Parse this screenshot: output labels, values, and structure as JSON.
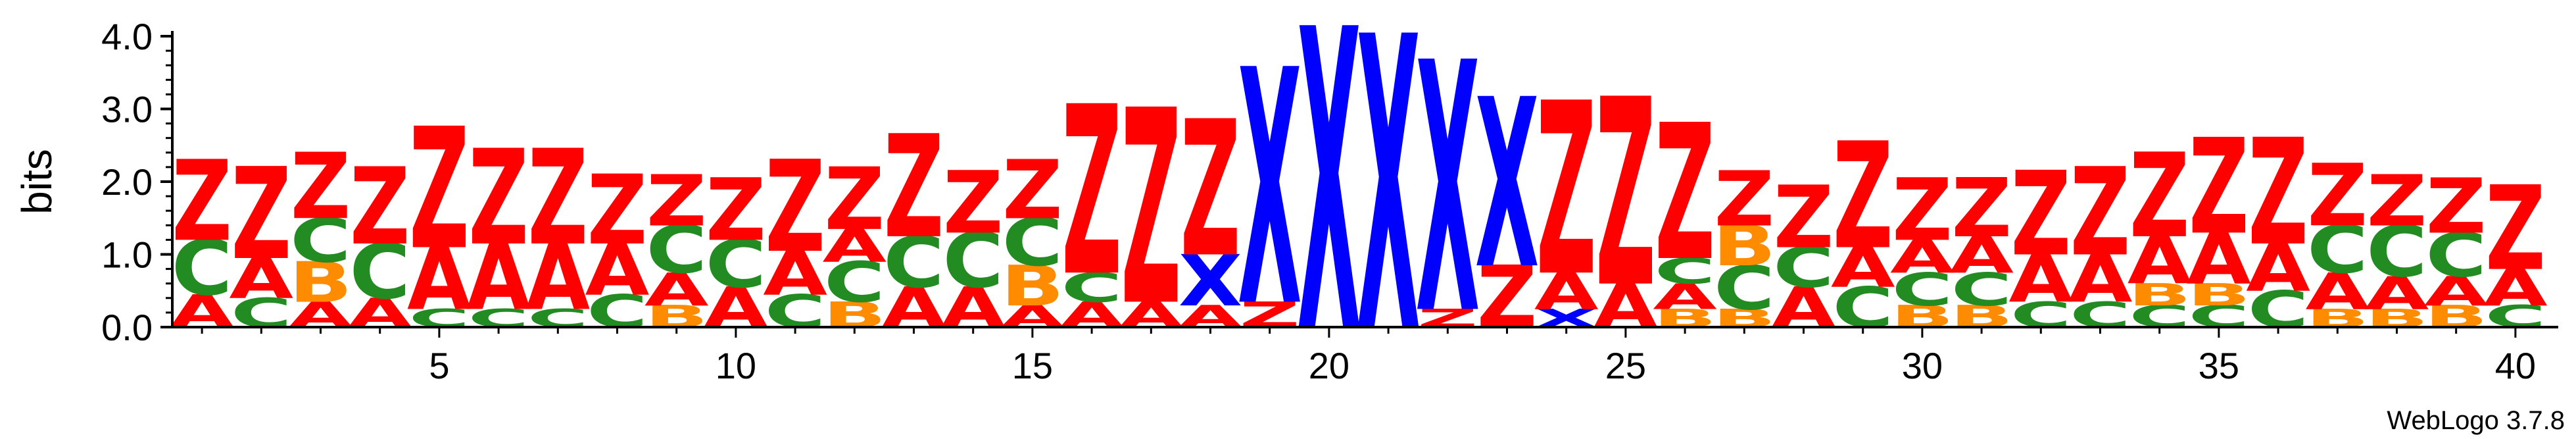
{
  "chart_data": {
    "type": "sequence-logo",
    "ylabel": "bits",
    "ylim": [
      0,
      4.0
    ],
    "yticks": [
      "0.0",
      "1.0",
      "2.0",
      "3.0",
      "4.0"
    ],
    "xticks": [
      5,
      10,
      15,
      20,
      25,
      30,
      35,
      40
    ],
    "positions": 40,
    "footer": "WebLogo 3.7.8",
    "colors": {
      "Z": "#ff0000",
      "A": "#ff0000",
      "X": "#0000ff",
      "C": "#228b22",
      "B": "#ff8c00"
    },
    "columns": [
      {
        "pos": 1,
        "stack": [
          {
            "letter": "A",
            "bits": 0.45
          },
          {
            "letter": "C",
            "bits": 0.75
          },
          {
            "letter": "Z",
            "bits": 1.1
          }
        ]
      },
      {
        "pos": 2,
        "stack": [
          {
            "letter": "C",
            "bits": 0.4
          },
          {
            "letter": "A",
            "bits": 0.55
          },
          {
            "letter": "Z",
            "bits": 1.25
          }
        ]
      },
      {
        "pos": 3,
        "stack": [
          {
            "letter": "A",
            "bits": 0.35
          },
          {
            "letter": "B",
            "bits": 0.55
          },
          {
            "letter": "C",
            "bits": 0.6
          },
          {
            "letter": "Z",
            "bits": 0.9
          }
        ]
      },
      {
        "pos": 4,
        "stack": [
          {
            "letter": "A",
            "bits": 0.4
          },
          {
            "letter": "C",
            "bits": 0.75
          },
          {
            "letter": "Z",
            "bits": 1.05
          }
        ]
      },
      {
        "pos": 5,
        "stack": [
          {
            "letter": "C",
            "bits": 0.25
          },
          {
            "letter": "A",
            "bits": 0.85
          },
          {
            "letter": "Z",
            "bits": 1.65
          }
        ]
      },
      {
        "pos": 6,
        "stack": [
          {
            "letter": "C",
            "bits": 0.25
          },
          {
            "letter": "A",
            "bits": 0.9
          },
          {
            "letter": "Z",
            "bits": 1.3
          }
        ]
      },
      {
        "pos": 7,
        "stack": [
          {
            "letter": "C",
            "bits": 0.25
          },
          {
            "letter": "A",
            "bits": 0.9
          },
          {
            "letter": "Z",
            "bits": 1.3
          }
        ]
      },
      {
        "pos": 8,
        "stack": [
          {
            "letter": "C",
            "bits": 0.45
          },
          {
            "letter": "A",
            "bits": 0.7
          },
          {
            "letter": "Z",
            "bits": 0.95
          }
        ]
      },
      {
        "pos": 9,
        "stack": [
          {
            "letter": "B",
            "bits": 0.3
          },
          {
            "letter": "A",
            "bits": 0.45
          },
          {
            "letter": "C",
            "bits": 0.65
          },
          {
            "letter": "Z",
            "bits": 0.7
          }
        ]
      },
      {
        "pos": 10,
        "stack": [
          {
            "letter": "A",
            "bits": 0.55
          },
          {
            "letter": "C",
            "bits": 0.65
          },
          {
            "letter": "Z",
            "bits": 0.85
          }
        ]
      },
      {
        "pos": 11,
        "stack": [
          {
            "letter": "C",
            "bits": 0.45
          },
          {
            "letter": "A",
            "bits": 0.6
          },
          {
            "letter": "Z",
            "bits": 1.25
          }
        ]
      },
      {
        "pos": 12,
        "stack": [
          {
            "letter": "B",
            "bits": 0.35
          },
          {
            "letter": "C",
            "bits": 0.55
          },
          {
            "letter": "A",
            "bits": 0.45
          },
          {
            "letter": "Z",
            "bits": 0.85
          }
        ]
      },
      {
        "pos": 13,
        "stack": [
          {
            "letter": "A",
            "bits": 0.55
          },
          {
            "letter": "C",
            "bits": 0.7
          },
          {
            "letter": "Z",
            "bits": 1.4
          }
        ]
      },
      {
        "pos": 14,
        "stack": [
          {
            "letter": "A",
            "bits": 0.55
          },
          {
            "letter": "C",
            "bits": 0.75
          },
          {
            "letter": "Z",
            "bits": 0.85
          }
        ]
      },
      {
        "pos": 15,
        "stack": [
          {
            "letter": "A",
            "bits": 0.3
          },
          {
            "letter": "B",
            "bits": 0.55
          },
          {
            "letter": "C",
            "bits": 0.65
          },
          {
            "letter": "Z",
            "bits": 0.8
          }
        ]
      },
      {
        "pos": 16,
        "stack": [
          {
            "letter": "A",
            "bits": 0.35
          },
          {
            "letter": "C",
            "bits": 0.4
          },
          {
            "letter": "Z",
            "bits": 2.3
          }
        ]
      },
      {
        "pos": 17,
        "stack": [
          {
            "letter": "A",
            "bits": 0.35
          },
          {
            "letter": "Z",
            "bits": 2.65
          }
        ]
      },
      {
        "pos": 18,
        "stack": [
          {
            "letter": "A",
            "bits": 0.3
          },
          {
            "letter": "X",
            "bits": 0.7
          },
          {
            "letter": "Z",
            "bits": 1.85
          }
        ]
      },
      {
        "pos": 19,
        "stack": [
          {
            "letter": "Z",
            "bits": 0.35
          },
          {
            "letter": "X",
            "bits": 3.2
          }
        ]
      },
      {
        "pos": 20,
        "stack": [
          {
            "letter": "X",
            "bits": 4.1
          }
        ]
      },
      {
        "pos": 21,
        "stack": [
          {
            "letter": "X",
            "bits": 4.0
          }
        ]
      },
      {
        "pos": 22,
        "stack": [
          {
            "letter": "Z",
            "bits": 0.25
          },
          {
            "letter": "X",
            "bits": 3.4
          }
        ]
      },
      {
        "pos": 23,
        "stack": [
          {
            "letter": "Z",
            "bits": 0.85
          },
          {
            "letter": "X",
            "bits": 2.3
          }
        ]
      },
      {
        "pos": 24,
        "stack": [
          {
            "letter": "X",
            "bits": 0.25
          },
          {
            "letter": "A",
            "bits": 0.5
          },
          {
            "letter": "Z",
            "bits": 2.35
          }
        ]
      },
      {
        "pos": 25,
        "stack": [
          {
            "letter": "A",
            "bits": 0.6
          },
          {
            "letter": "Z",
            "bits": 2.55
          }
        ]
      },
      {
        "pos": 26,
        "stack": [
          {
            "letter": "B",
            "bits": 0.25
          },
          {
            "letter": "A",
            "bits": 0.35
          },
          {
            "letter": "C",
            "bits": 0.35
          },
          {
            "letter": "Z",
            "bits": 1.85
          }
        ]
      },
      {
        "pos": 27,
        "stack": [
          {
            "letter": "B",
            "bits": 0.25
          },
          {
            "letter": "C",
            "bits": 0.6
          },
          {
            "letter": "B",
            "bits": 0.55
          },
          {
            "letter": "Z",
            "bits": 0.75
          }
        ]
      },
      {
        "pos": 28,
        "stack": [
          {
            "letter": "A",
            "bits": 0.55
          },
          {
            "letter": "C",
            "bits": 0.55
          },
          {
            "letter": "Z",
            "bits": 0.85
          }
        ]
      },
      {
        "pos": 29,
        "stack": [
          {
            "letter": "C",
            "bits": 0.55
          },
          {
            "letter": "A",
            "bits": 0.55
          },
          {
            "letter": "Z",
            "bits": 1.45
          }
        ]
      },
      {
        "pos": 30,
        "stack": [
          {
            "letter": "B",
            "bits": 0.3
          },
          {
            "letter": "C",
            "bits": 0.45
          },
          {
            "letter": "A",
            "bits": 0.45
          },
          {
            "letter": "Z",
            "bits": 0.85
          }
        ]
      },
      {
        "pos": 31,
        "stack": [
          {
            "letter": "B",
            "bits": 0.3
          },
          {
            "letter": "C",
            "bits": 0.45
          },
          {
            "letter": "A",
            "bits": 0.5
          },
          {
            "letter": "Z",
            "bits": 0.8
          }
        ]
      },
      {
        "pos": 32,
        "stack": [
          {
            "letter": "C",
            "bits": 0.35
          },
          {
            "letter": "A",
            "bits": 0.65
          },
          {
            "letter": "Z",
            "bits": 1.15
          }
        ]
      },
      {
        "pos": 33,
        "stack": [
          {
            "letter": "C",
            "bits": 0.35
          },
          {
            "letter": "A",
            "bits": 0.65
          },
          {
            "letter": "Z",
            "bits": 1.2
          }
        ]
      },
      {
        "pos": 34,
        "stack": [
          {
            "letter": "C",
            "bits": 0.3
          },
          {
            "letter": "B",
            "bits": 0.3
          },
          {
            "letter": "A",
            "bits": 0.65
          },
          {
            "letter": "Z",
            "bits": 1.15
          }
        ]
      },
      {
        "pos": 35,
        "stack": [
          {
            "letter": "C",
            "bits": 0.3
          },
          {
            "letter": "B",
            "bits": 0.3
          },
          {
            "letter": "A",
            "bits": 0.7
          },
          {
            "letter": "Z",
            "bits": 1.3
          }
        ]
      },
      {
        "pos": 36,
        "stack": [
          {
            "letter": "C",
            "bits": 0.5
          },
          {
            "letter": "A",
            "bits": 0.65
          },
          {
            "letter": "Z",
            "bits": 1.45
          }
        ]
      },
      {
        "pos": 37,
        "stack": [
          {
            "letter": "B",
            "bits": 0.25
          },
          {
            "letter": "A",
            "bits": 0.5
          },
          {
            "letter": "C",
            "bits": 0.65
          },
          {
            "letter": "Z",
            "bits": 0.85
          }
        ]
      },
      {
        "pos": 38,
        "stack": [
          {
            "letter": "B",
            "bits": 0.25
          },
          {
            "letter": "A",
            "bits": 0.45
          },
          {
            "letter": "C",
            "bits": 0.7
          },
          {
            "letter": "Z",
            "bits": 0.7
          }
        ]
      },
      {
        "pos": 39,
        "stack": [
          {
            "letter": "B",
            "bits": 0.3
          },
          {
            "letter": "A",
            "bits": 0.4
          },
          {
            "letter": "C",
            "bits": 0.6
          },
          {
            "letter": "Z",
            "bits": 0.75
          }
        ]
      },
      {
        "pos": 40,
        "stack": [
          {
            "letter": "C",
            "bits": 0.3
          },
          {
            "letter": "A",
            "bits": 0.5
          },
          {
            "letter": "Z",
            "bits": 1.15
          }
        ]
      }
    ]
  }
}
